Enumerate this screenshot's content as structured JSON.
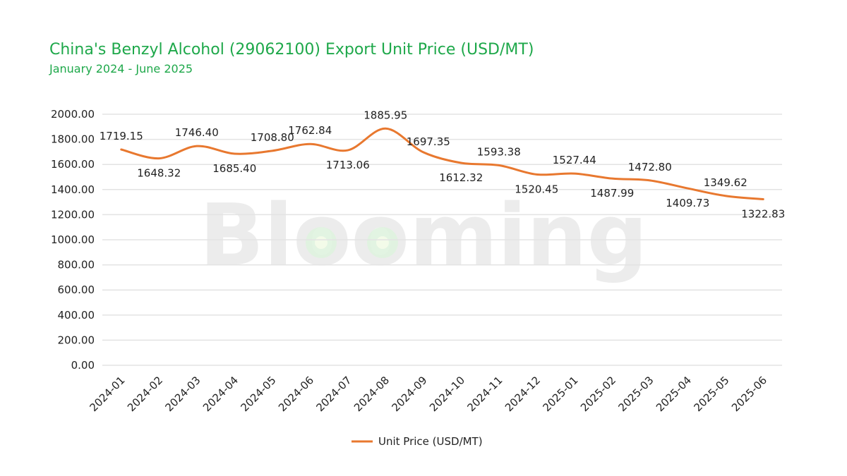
{
  "header": {
    "title": "China's Benzyl Alcohol (29062100) Export Unit Price (USD/MT)",
    "subtitle": "January 2024 - June 2025"
  },
  "watermark": {
    "text": "Blooming",
    "color": "#e6e6e6"
  },
  "colors": {
    "title": "#1ea84a",
    "line": "#e8782f",
    "grid": "#e3e3e3"
  },
  "chart_data": {
    "type": "line",
    "title": "China's Benzyl Alcohol (29062100) Export Unit Price (USD/MT)",
    "subtitle": "January 2024 - June 2025",
    "categories": [
      "2024-01",
      "2024-02",
      "2024-03",
      "2024-04",
      "2024-05",
      "2024-06",
      "2024-07",
      "2024-08",
      "2024-09",
      "2024-10",
      "2024-11",
      "2024-12",
      "2025-01",
      "2025-02",
      "2025-03",
      "2025-04",
      "2025-05",
      "2025-06"
    ],
    "series": [
      {
        "name": "Unit Price (USD/MT)",
        "values": [
          1719.15,
          1648.32,
          1746.4,
          1685.4,
          1708.8,
          1762.84,
          1713.06,
          1885.95,
          1697.35,
          1612.32,
          1593.38,
          1520.45,
          1527.44,
          1487.99,
          1472.8,
          1409.73,
          1349.62,
          1322.83
        ],
        "data_labels": [
          "1719.15",
          "1648.32",
          "1746.40",
          "1685.40",
          "1708.80",
          "1762.84",
          "1713.06",
          "1885.95",
          "1697.35",
          "1612.32",
          "1593.38",
          "1520.45",
          "1527.44",
          "1487.99",
          "1472.80",
          "1409.73",
          "1349.62",
          "1322.83"
        ],
        "color": "#e8782f"
      }
    ],
    "ylim": [
      0,
      2000
    ],
    "yticks": [
      "0.00",
      "200.00",
      "400.00",
      "600.00",
      "800.00",
      "1000.00",
      "1200.00",
      "1400.00",
      "1600.00",
      "1800.00",
      "2000.00"
    ],
    "grid": true,
    "legend_position": "bottom"
  }
}
